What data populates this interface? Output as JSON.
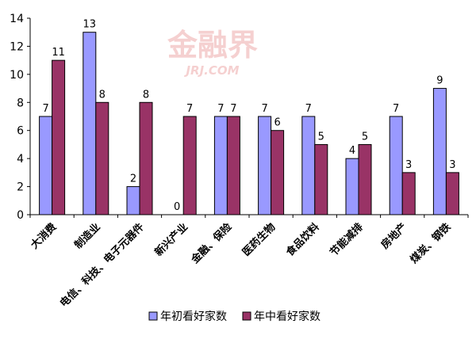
{
  "watermark": {
    "cn": "金融界",
    "en": "JRJ.COM"
  },
  "chart_data": {
    "type": "bar",
    "categories": [
      "大消费",
      "制造业",
      "电信、科技、电子元器件",
      "新兴产业",
      "金融、保险",
      "医药生物",
      "食品饮料",
      "节能减排",
      "房地产",
      "煤炭、钢铁"
    ],
    "series": [
      {
        "name": "年初看好家数",
        "values": [
          7,
          13,
          2,
          0,
          7,
          7,
          7,
          4,
          7,
          9
        ],
        "color": "#9999ff"
      },
      {
        "name": "年中看好家数",
        "values": [
          11,
          8,
          8,
          7,
          7,
          6,
          5,
          5,
          3,
          3
        ],
        "color": "#993366"
      }
    ],
    "ylim": [
      0,
      14
    ],
    "yticks": [
      0,
      2,
      4,
      6,
      8,
      10,
      12,
      14
    ],
    "grid": false,
    "legend": "bottom",
    "title": "",
    "xlabel": "",
    "ylabel": ""
  }
}
